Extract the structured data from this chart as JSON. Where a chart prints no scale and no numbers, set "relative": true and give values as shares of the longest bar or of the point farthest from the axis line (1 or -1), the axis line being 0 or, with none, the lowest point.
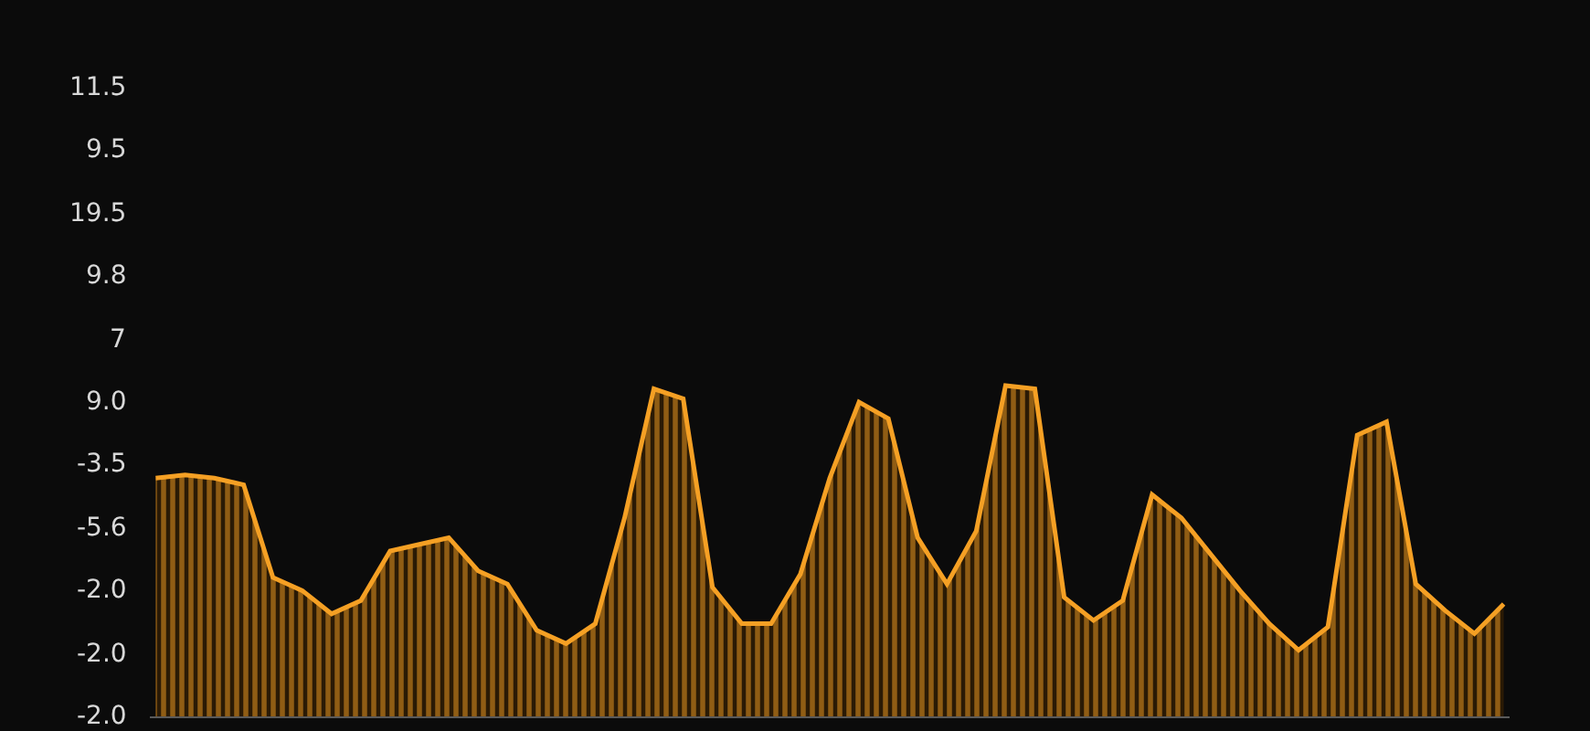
{
  "chart_data": {
    "type": "area",
    "relative": true,
    "color": "#f5a024",
    "categories": [
      null,
      null,
      null,
      null,
      null,
      null,
      null,
      null,
      null,
      null,
      null,
      null,
      null,
      null,
      null,
      null,
      null,
      null,
      null,
      null,
      null,
      null,
      null,
      null,
      null,
      null,
      null,
      null,
      null,
      null,
      null,
      null,
      null,
      null,
      null,
      null,
      null,
      null,
      null,
      null,
      null,
      null,
      null,
      null,
      null,
      null,
      null
    ],
    "values": [
      0.72,
      0.73,
      0.72,
      0.7,
      0.42,
      0.38,
      0.31,
      0.35,
      0.5,
      0.52,
      0.54,
      0.44,
      0.4,
      0.26,
      0.22,
      0.28,
      0.6,
      0.99,
      0.96,
      0.39,
      0.28,
      0.28,
      0.43,
      0.72,
      0.95,
      0.9,
      0.54,
      0.4,
      0.56,
      1,
      0.99,
      0.36,
      0.29,
      0.35,
      0.67,
      0.6,
      0.49,
      0.38,
      0.28,
      0.2,
      0.27,
      0.85,
      0.89,
      0.4,
      0.32,
      0.25,
      0.34
    ],
    "annotations": [
      "11.5",
      "9.5",
      "19.5",
      "9.8",
      "7",
      "9.0",
      "-3.5",
      "-5.6",
      "-2.0",
      "-2.0",
      "-2.0"
    ]
  }
}
